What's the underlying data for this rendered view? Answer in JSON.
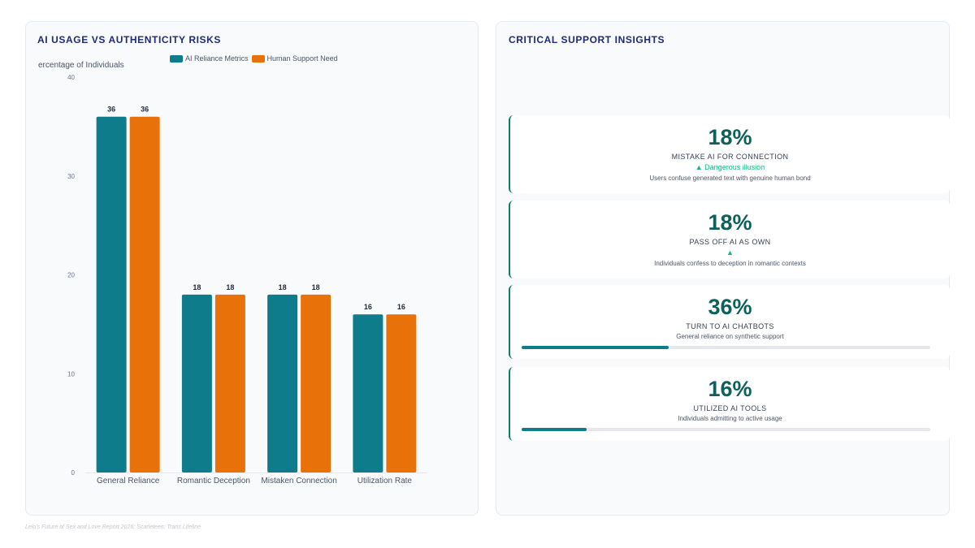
{
  "left_panel": {
    "title": "AI USAGE VS AUTHENTICITY RISKS"
  },
  "right_panel": {
    "title": "CRITICAL SUPPORT INSIGHTS"
  },
  "chart_data": {
    "type": "bar",
    "title": "AI USAGE VS AUTHENTICITY RISKS",
    "xlabel": "",
    "ylabel": "ercentage of Individuals",
    "categories": [
      "General Reliance",
      "Romantic Deception",
      "Mistaken Connection",
      "Utilization Rate"
    ],
    "series": [
      {
        "name": "AI Reliance Metrics",
        "color": "#0e7c8a",
        "values": [
          36,
          18,
          18,
          16
        ]
      },
      {
        "name": "Human Support Need",
        "color": "#e8710a",
        "values": [
          36,
          18,
          18,
          16
        ]
      }
    ],
    "ylim": [
      0,
      40
    ],
    "yticks": [
      0,
      10,
      20,
      30,
      40
    ],
    "data_labels": true,
    "legend_position": "top",
    "grid": false
  },
  "kpis": [
    {
      "value": "18%",
      "label": "MISTAKE AI FOR CONNECTION",
      "trend": "▲ Dangerous illusion",
      "desc": "Users confuse generated text with genuine human bond"
    },
    {
      "value": "18%",
      "label": "PASS OFF AI AS OWN",
      "trend": "▲",
      "desc": "Individuals confess to deception in romantic contexts"
    },
    {
      "value": "36%",
      "label": "TURN TO AI CHATBOTS",
      "desc": "General reliance on synthetic support",
      "progress": 0.36
    },
    {
      "value": "16%",
      "label": "UTILIZED AI TOOLS",
      "desc": "Individuals admitting to active usage",
      "progress": 0.16
    }
  ],
  "source": "Lelo's Future of Sex and Love Report 2026; Scarleteen; Trans Lifeline",
  "colors": {
    "accent": "#0e7c74",
    "title": "#1e2a78",
    "trend": "#10b981"
  }
}
